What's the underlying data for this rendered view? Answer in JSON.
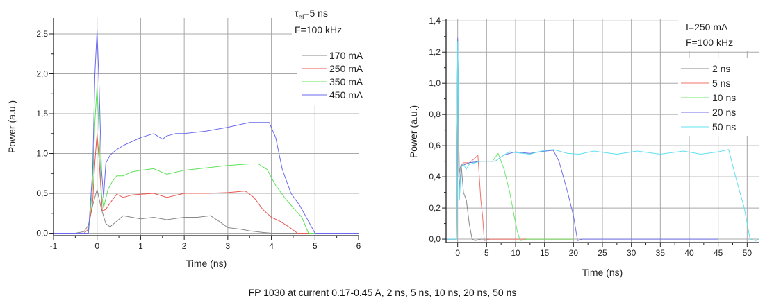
{
  "caption": "FP 1030 at current 0.17-0.45 A, 2 ns, 5 ns, 10 ns, 20 ns, 50 ns",
  "chart_data": [
    {
      "type": "line",
      "title": "",
      "xlabel": "Time (ns)",
      "ylabel": "Power (a.u.)",
      "xlim": [
        -1,
        6
      ],
      "ylim": [
        -0.03,
        2.7
      ],
      "xticks": [
        -1,
        0,
        1,
        2,
        3,
        4,
        5,
        6
      ],
      "xtick_labels": [
        "-1",
        "0",
        "1",
        "2",
        "3",
        "4",
        "5",
        "6"
      ],
      "yticks": [
        0,
        0.5,
        1.0,
        1.5,
        2.0,
        2.5
      ],
      "ytick_labels": [
        "0,0",
        "0,5",
        "1,0",
        "1,5",
        "2,0",
        "2,5"
      ],
      "grid": true,
      "annotation_lines": [
        "τ",
        "el",
        "=5 ns",
        "F=100 kHz"
      ],
      "legend_position": "top-right",
      "series": [
        {
          "name": "170 mA",
          "color": "#888888",
          "x": [
            -1,
            -0.5,
            -0.3,
            -0.2,
            -0.1,
            0,
            0.1,
            0.2,
            0.3,
            0.45,
            0.6,
            0.8,
            1.0,
            1.3,
            1.6,
            2.0,
            2.3,
            2.6,
            2.8,
            3.0,
            3.3,
            3.5,
            3.8,
            4.0,
            6
          ],
          "y": [
            0.0,
            0.0,
            0.02,
            0.1,
            0.35,
            0.55,
            0.3,
            0.12,
            0.08,
            0.15,
            0.22,
            0.2,
            0.18,
            0.2,
            0.17,
            0.2,
            0.2,
            0.22,
            0.15,
            0.07,
            0.05,
            0.03,
            0.01,
            0.0,
            0.0
          ]
        },
        {
          "name": "250 mA",
          "color": "#e8584f",
          "x": [
            -1,
            -0.3,
            -0.2,
            -0.1,
            -0.05,
            0,
            0.05,
            0.12,
            0.2,
            0.3,
            0.45,
            0.6,
            0.8,
            1.0,
            1.3,
            1.6,
            2.0,
            2.5,
            3.0,
            3.4,
            3.6,
            3.8,
            4.0,
            4.2,
            4.4,
            4.6,
            6
          ],
          "y": [
            0.0,
            0.0,
            0.05,
            0.4,
            0.9,
            1.25,
            0.9,
            0.28,
            0.3,
            0.38,
            0.49,
            0.45,
            0.48,
            0.49,
            0.5,
            0.45,
            0.5,
            0.5,
            0.51,
            0.53,
            0.45,
            0.3,
            0.2,
            0.15,
            0.08,
            0.0,
            0.0
          ]
        },
        {
          "name": "350 mA",
          "color": "#5ee05a",
          "x": [
            -1,
            -0.2,
            -0.1,
            -0.05,
            0,
            0.05,
            0.1,
            0.15,
            0.25,
            0.35,
            0.45,
            0.6,
            0.8,
            1.0,
            1.3,
            1.6,
            2.0,
            2.5,
            3.0,
            3.5,
            3.7,
            3.9,
            4.1,
            4.3,
            4.5,
            4.7,
            4.85,
            6
          ],
          "y": [
            0.0,
            0.0,
            0.6,
            1.4,
            1.85,
            1.2,
            0.5,
            0.32,
            0.55,
            0.65,
            0.72,
            0.72,
            0.77,
            0.79,
            0.81,
            0.74,
            0.79,
            0.82,
            0.85,
            0.87,
            0.87,
            0.8,
            0.6,
            0.45,
            0.32,
            0.2,
            0.0,
            0.0
          ]
        },
        {
          "name": "450 mA",
          "color": "#6a6aee",
          "x": [
            -1,
            -0.2,
            -0.1,
            -0.05,
            0,
            0.05,
            0.1,
            0.15,
            0.2,
            0.3,
            0.45,
            0.6,
            0.8,
            1.0,
            1.3,
            1.5,
            1.6,
            1.8,
            2.0,
            2.5,
            3.0,
            3.5,
            3.95,
            4.1,
            4.25,
            4.45,
            4.65,
            4.85,
            5.0,
            6
          ],
          "y": [
            0.0,
            0.0,
            0.8,
            2.0,
            2.55,
            1.8,
            0.8,
            0.45,
            0.88,
            0.98,
            1.05,
            1.1,
            1.15,
            1.2,
            1.25,
            1.18,
            1.22,
            1.25,
            1.25,
            1.28,
            1.33,
            1.39,
            1.39,
            1.2,
            0.8,
            0.5,
            0.35,
            0.15,
            0.0,
            0.0
          ]
        }
      ]
    },
    {
      "type": "line",
      "title": "",
      "xlabel": "Time (ns)",
      "ylabel": "Power (a.u.)",
      "xlim": [
        -2,
        52
      ],
      "ylim": [
        -0.022,
        1.41
      ],
      "xticks": [
        0,
        5,
        10,
        15,
        20,
        25,
        30,
        35,
        40,
        45,
        50
      ],
      "xtick_labels": [
        "0",
        "5",
        "10",
        "15",
        "20",
        "25",
        "30",
        "35",
        "40",
        "45",
        "50"
      ],
      "yticks": [
        0,
        0.2,
        0.4,
        0.6,
        0.8,
        1.0,
        1.2,
        1.4
      ],
      "ytick_labels": [
        "0,0",
        "0,2",
        "0,4",
        "0,6",
        "0,8",
        "1,0",
        "1,2",
        "1,4"
      ],
      "grid": true,
      "annotation_lines": [
        "I=250 mA",
        "F=100 kHz"
      ],
      "legend_position": "top-right",
      "series": [
        {
          "name": "2 ns",
          "color": "#888888",
          "x": [
            -2,
            -0.2,
            0,
            0.2,
            0.4,
            0.6,
            1.0,
            1.5,
            2.0,
            2.5,
            3.0,
            4.0,
            6.0,
            20
          ],
          "y": [
            0.0,
            0.0,
            1.28,
            0.4,
            0.45,
            0.48,
            0.3,
            0.25,
            0.1,
            0.0,
            -0.01,
            0.0,
            0.0,
            0.0
          ]
        },
        {
          "name": "5 ns",
          "color": "#f07068",
          "x": [
            -2,
            -0.2,
            0,
            0.3,
            0.6,
            1.0,
            2.0,
            3.0,
            3.5,
            4.0,
            4.3,
            4.6,
            5.5,
            8,
            20
          ],
          "y": [
            0.0,
            0.0,
            1.27,
            0.3,
            0.47,
            0.49,
            0.49,
            0.52,
            0.54,
            0.25,
            0.15,
            -0.01,
            0.0,
            0.0,
            0.0
          ]
        },
        {
          "name": "10 ns",
          "color": "#6ee86a",
          "x": [
            -2,
            -0.2,
            0,
            0.3,
            0.6,
            2.0,
            4.0,
            6.0,
            7.0,
            8.0,
            9.0,
            9.7,
            10.3,
            10.8,
            12,
            20
          ],
          "y": [
            0.0,
            0.0,
            1.27,
            0.3,
            0.47,
            0.49,
            0.5,
            0.5,
            0.55,
            0.45,
            0.3,
            0.16,
            0.05,
            -0.01,
            0.0,
            0.0
          ]
        },
        {
          "name": "20 ns",
          "color": "#7070e8",
          "x": [
            -2,
            -0.2,
            0,
            0.3,
            0.6,
            2.0,
            4.0,
            6.5,
            8.0,
            10.0,
            12.5,
            14.0,
            16.5,
            17.5,
            19.0,
            20.0,
            20.7,
            21.5,
            30,
            45
          ],
          "y": [
            0.0,
            0.0,
            1.29,
            0.3,
            0.47,
            0.49,
            0.5,
            0.5,
            0.54,
            0.56,
            0.55,
            0.56,
            0.57,
            0.5,
            0.3,
            0.15,
            -0.01,
            0.0,
            0.0,
            0.0
          ]
        },
        {
          "name": "50 ns",
          "color": "#60e0f0",
          "x": [
            -2,
            -0.2,
            0,
            0.3,
            0.6,
            1.0,
            1.5,
            2.0,
            4.0,
            6.5,
            8.0,
            9.0,
            10.0,
            12.5,
            14.5,
            16.5,
            19.0,
            21.0,
            23.5,
            27.5,
            31.0,
            35.0,
            39.0,
            42.0,
            45.0,
            46.8,
            48.0,
            49.5,
            50.5,
            51.5,
            52
          ],
          "y": [
            0.0,
            0.0,
            1.27,
            0.25,
            0.46,
            0.48,
            0.45,
            0.48,
            0.5,
            0.5,
            0.54,
            0.56,
            0.555,
            0.545,
            0.565,
            0.575,
            0.55,
            0.545,
            0.565,
            0.545,
            0.565,
            0.545,
            0.565,
            0.545,
            0.56,
            0.575,
            0.4,
            0.2,
            0.0,
            -0.01,
            0.0
          ]
        }
      ]
    }
  ]
}
